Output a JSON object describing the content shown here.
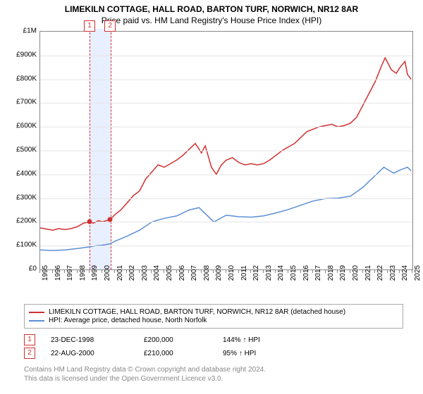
{
  "title": {
    "line1": "LIMEKILN COTTAGE, HALL ROAD, BARTON TURF, NORWICH, NR12 8AR",
    "line2": "Price paid vs. HM Land Registry's House Price Index (HPI)"
  },
  "chart": {
    "type": "line",
    "background_color": "#ffffff",
    "grid_color": "#e5e5e5",
    "axis_color": "#888888",
    "xlim": [
      1995,
      2025
    ],
    "ylim": [
      0,
      1000000
    ],
    "y_ticks": [
      0,
      100000,
      200000,
      300000,
      400000,
      500000,
      600000,
      700000,
      800000,
      900000,
      1000000
    ],
    "y_tick_labels": [
      "£0",
      "£100K",
      "£200K",
      "£300K",
      "£400K",
      "£500K",
      "£600K",
      "£700K",
      "£800K",
      "£900K",
      "£1M"
    ],
    "x_ticks": [
      1995,
      1996,
      1997,
      1998,
      1999,
      2000,
      2001,
      2002,
      2003,
      2004,
      2005,
      2006,
      2007,
      2008,
      2009,
      2010,
      2011,
      2012,
      2013,
      2014,
      2015,
      2016,
      2017,
      2018,
      2019,
      2020,
      2021,
      2022,
      2023,
      2024,
      2025
    ],
    "y_label_fontsize": 10,
    "x_label_fontsize": 10,
    "series": [
      {
        "name": "property",
        "label": "LIMEKILN COTTAGE, HALL ROAD, BARTON TURF, NORWICH, NR12 8AR (detached house)",
        "color": "#d03030",
        "line_width": 1.5,
        "points": [
          [
            1995,
            175000
          ],
          [
            1995.5,
            170000
          ],
          [
            1996,
            165000
          ],
          [
            1996.5,
            172000
          ],
          [
            1997,
            168000
          ],
          [
            1997.5,
            172000
          ],
          [
            1998,
            180000
          ],
          [
            1998.5,
            195000
          ],
          [
            1998.98,
            200000
          ],
          [
            1999.3,
            195000
          ],
          [
            1999.7,
            205000
          ],
          [
            2000.0,
            200000
          ],
          [
            2000.64,
            210000
          ],
          [
            2001,
            230000
          ],
          [
            2001.5,
            250000
          ],
          [
            2002,
            280000
          ],
          [
            2002.5,
            310000
          ],
          [
            2003,
            330000
          ],
          [
            2003.5,
            380000
          ],
          [
            2004,
            410000
          ],
          [
            2004.5,
            440000
          ],
          [
            2005,
            430000
          ],
          [
            2005.5,
            445000
          ],
          [
            2006,
            460000
          ],
          [
            2006.5,
            480000
          ],
          [
            2007,
            505000
          ],
          [
            2007.5,
            530000
          ],
          [
            2008,
            490000
          ],
          [
            2008.3,
            520000
          ],
          [
            2008.8,
            430000
          ],
          [
            2009.2,
            400000
          ],
          [
            2009.6,
            440000
          ],
          [
            2010,
            460000
          ],
          [
            2010.5,
            470000
          ],
          [
            2011,
            450000
          ],
          [
            2011.5,
            440000
          ],
          [
            2012,
            445000
          ],
          [
            2012.5,
            440000
          ],
          [
            2013,
            445000
          ],
          [
            2013.5,
            460000
          ],
          [
            2014,
            480000
          ],
          [
            2014.5,
            500000
          ],
          [
            2015,
            515000
          ],
          [
            2015.5,
            530000
          ],
          [
            2016,
            555000
          ],
          [
            2016.5,
            580000
          ],
          [
            2017,
            590000
          ],
          [
            2017.5,
            600000
          ],
          [
            2018,
            605000
          ],
          [
            2018.5,
            610000
          ],
          [
            2019,
            600000
          ],
          [
            2019.5,
            605000
          ],
          [
            2020,
            615000
          ],
          [
            2020.5,
            640000
          ],
          [
            2021,
            690000
          ],
          [
            2021.5,
            740000
          ],
          [
            2022,
            790000
          ],
          [
            2022.5,
            855000
          ],
          [
            2022.8,
            890000
          ],
          [
            2023,
            870000
          ],
          [
            2023.3,
            840000
          ],
          [
            2023.7,
            825000
          ],
          [
            2024,
            850000
          ],
          [
            2024.4,
            875000
          ],
          [
            2024.6,
            820000
          ],
          [
            2024.9,
            800000
          ]
        ]
      },
      {
        "name": "hpi",
        "label": "HPI: Average price, detached house, North Norfolk",
        "color": "#5b8fd6",
        "line_width": 1.5,
        "points": [
          [
            1995,
            82000
          ],
          [
            1996,
            80000
          ],
          [
            1997,
            82000
          ],
          [
            1998,
            88000
          ],
          [
            1998.98,
            95000
          ],
          [
            1999.5,
            100000
          ],
          [
            2000,
            102000
          ],
          [
            2000.64,
            108000
          ],
          [
            2001,
            118000
          ],
          [
            2002,
            140000
          ],
          [
            2003,
            165000
          ],
          [
            2004,
            200000
          ],
          [
            2005,
            215000
          ],
          [
            2006,
            225000
          ],
          [
            2007,
            250000
          ],
          [
            2007.8,
            260000
          ],
          [
            2008.5,
            225000
          ],
          [
            2009,
            200000
          ],
          [
            2009.7,
            220000
          ],
          [
            2010,
            228000
          ],
          [
            2011,
            222000
          ],
          [
            2012,
            220000
          ],
          [
            2013,
            225000
          ],
          [
            2014,
            238000
          ],
          [
            2015,
            252000
          ],
          [
            2016,
            270000
          ],
          [
            2017,
            288000
          ],
          [
            2018,
            298000
          ],
          [
            2019,
            300000
          ],
          [
            2020,
            308000
          ],
          [
            2021,
            345000
          ],
          [
            2022,
            395000
          ],
          [
            2022.7,
            430000
          ],
          [
            2023,
            420000
          ],
          [
            2023.5,
            405000
          ],
          [
            2024,
            418000
          ],
          [
            2024.6,
            430000
          ],
          [
            2024.9,
            415000
          ]
        ]
      }
    ],
    "sale_markers": [
      {
        "badge": "1",
        "x": 1998.98,
        "y": 200000
      },
      {
        "badge": "2",
        "x": 2000.64,
        "y": 210000
      }
    ],
    "marker_band_color": "#e8efff",
    "marker_dot_color": "#d03030",
    "marker_border_color": "#d03030"
  },
  "sales": [
    {
      "badge": "1",
      "date": "23-DEC-1998",
      "price": "£200,000",
      "delta": "144% ↑ HPI"
    },
    {
      "badge": "2",
      "date": "22-AUG-2000",
      "price": "£210,000",
      "delta": "95% ↑ HPI"
    }
  ],
  "footnote": {
    "line1": "Contains HM Land Registry data © Crown copyright and database right 2024.",
    "line2": "This data is licensed under the Open Government Licence v3.0."
  }
}
